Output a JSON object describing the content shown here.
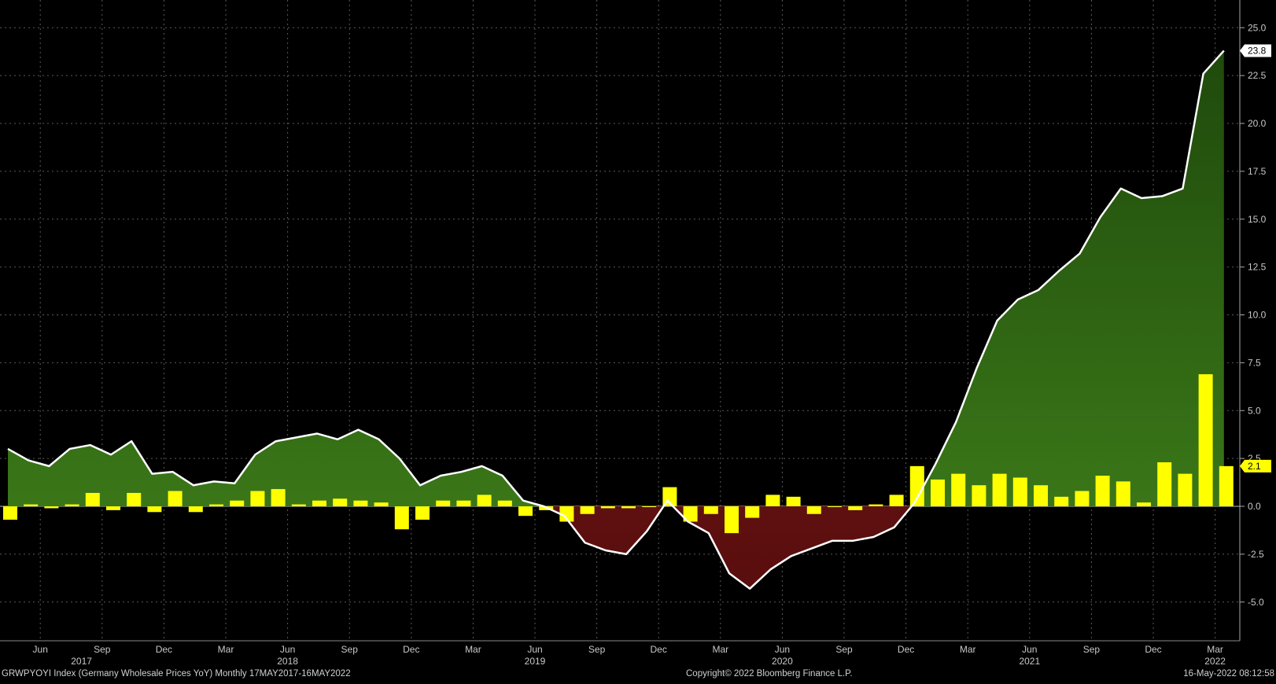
{
  "chart_data": {
    "type": "area",
    "ylim": [
      -7,
      26
    ],
    "grid": true,
    "y_ticks": [
      "25.0",
      "22.5",
      "20.0",
      "17.5",
      "15.0",
      "12.5",
      "10.0",
      "7.5",
      "5.0",
      "2.5",
      "0.0",
      "-2.5",
      "-5.0"
    ],
    "y_tick_values": [
      25,
      22.5,
      20,
      17.5,
      15,
      12.5,
      10,
      7.5,
      5,
      2.5,
      0,
      -2.5,
      -5
    ],
    "x_month_labels": [
      {
        "label": "Jun",
        "i": 1
      },
      {
        "label": "Sep",
        "i": 4
      },
      {
        "label": "Dec",
        "i": 7
      },
      {
        "label": "Mar",
        "i": 10
      },
      {
        "label": "Jun",
        "i": 13
      },
      {
        "label": "Sep",
        "i": 16
      },
      {
        "label": "Dec",
        "i": 19
      },
      {
        "label": "Mar",
        "i": 22
      },
      {
        "label": "Jun",
        "i": 25
      },
      {
        "label": "Sep",
        "i": 28
      },
      {
        "label": "Dec",
        "i": 31
      },
      {
        "label": "Mar",
        "i": 34
      },
      {
        "label": "Jun",
        "i": 37
      },
      {
        "label": "Sep",
        "i": 40
      },
      {
        "label": "Dec",
        "i": 43
      },
      {
        "label": "Mar",
        "i": 46
      },
      {
        "label": "Jun",
        "i": 49
      },
      {
        "label": "Sep",
        "i": 52
      },
      {
        "label": "Dec",
        "i": 55
      },
      {
        "label": "Mar",
        "i": 58
      }
    ],
    "x_year_labels": [
      {
        "label": "2017",
        "i": 3
      },
      {
        "label": "2018",
        "i": 13
      },
      {
        "label": "2019",
        "i": 25
      },
      {
        "label": "2020",
        "i": 37
      },
      {
        "label": "2021",
        "i": 49
      },
      {
        "label": "2022",
        "i": 58
      }
    ],
    "series": [
      {
        "type": "area-line",
        "x": [
          "May 2017",
          "Jun 2017",
          "Jul 2017",
          "Aug 2017",
          "Sep 2017",
          "Oct 2017",
          "Nov 2017",
          "Dec 2017",
          "Jan 2018",
          "Feb 2018",
          "Mar 2018",
          "Apr 2018",
          "May 2018",
          "Jun 2018",
          "Jul 2018",
          "Aug 2018",
          "Sep 2018",
          "Oct 2018",
          "Nov 2018",
          "Dec 2018",
          "Jan 2019",
          "Feb 2019",
          "Mar 2019",
          "Apr 2019",
          "May 2019",
          "Jun 2019",
          "Jul 2019",
          "Aug 2019",
          "Sep 2019",
          "Oct 2019",
          "Nov 2019",
          "Dec 2019",
          "Jan 2020",
          "Feb 2020",
          "Mar 2020",
          "Apr 2020",
          "May 2020",
          "Jun 2020",
          "Jul 2020",
          "Aug 2020",
          "Sep 2020",
          "Oct 2020",
          "Nov 2020",
          "Dec 2020",
          "Jan 2021",
          "Feb 2021",
          "Mar 2021",
          "Apr 2021",
          "May 2021",
          "Jun 2021",
          "Jul 2021",
          "Aug 2021",
          "Sep 2021",
          "Oct 2021",
          "Nov 2021",
          "Dec 2021",
          "Jan 2022",
          "Feb 2022",
          "Mar 2022",
          "Apr 2022"
        ],
        "values": [
          3.0,
          2.4,
          2.1,
          3.0,
          3.2,
          2.7,
          3.4,
          1.7,
          1.8,
          1.1,
          1.3,
          1.2,
          2.7,
          3.4,
          3.6,
          3.8,
          3.5,
          4.0,
          3.5,
          2.5,
          1.1,
          1.6,
          1.8,
          2.1,
          1.6,
          0.3,
          0.0,
          -0.5,
          -1.9,
          -2.3,
          -2.5,
          -1.3,
          0.3,
          -0.8,
          -1.4,
          -3.5,
          -4.3,
          -3.3,
          -2.6,
          -2.2,
          -1.8,
          -1.8,
          -1.6,
          -1.1,
          0.2,
          2.2,
          4.4,
          7.2,
          9.7,
          10.8,
          11.3,
          12.3,
          13.2,
          15.1,
          16.6,
          16.1,
          16.2,
          16.6,
          22.6,
          23.8
        ],
        "last_value_label": "23.8"
      },
      {
        "type": "bar",
        "values": [
          -0.7,
          0.1,
          -0.1,
          0.1,
          0.7,
          -0.2,
          0.7,
          -0.3,
          0.8,
          -0.3,
          0.1,
          0.3,
          0.8,
          0.9,
          0.1,
          0.3,
          0.4,
          0.3,
          0.2,
          -1.2,
          -0.7,
          0.3,
          0.3,
          0.6,
          0.3,
          -0.5,
          -0.2,
          -0.8,
          -0.4,
          -0.1,
          -0.1,
          0.0,
          1.0,
          -0.8,
          -0.4,
          -1.4,
          -0.6,
          0.6,
          0.5,
          -0.4,
          0.0,
          -0.2,
          0.1,
          0.6,
          2.1,
          1.4,
          1.7,
          1.1,
          1.7,
          1.5,
          1.1,
          0.5,
          0.8,
          1.6,
          1.3,
          0.2,
          2.3,
          1.7,
          6.9,
          2.1
        ],
        "last_value_label": "2.1"
      }
    ],
    "footer": {
      "left": "GRWPYOYI Index (Germany Wholesale Prices YoY)  Monthly 17MAY2017-16MAY2022",
      "center": "Copyright© 2022 Bloomberg Finance L.P.",
      "right": "16-May-2022 08:12:58"
    },
    "colors": {
      "background": "#000000",
      "grid": "#5a5a5a",
      "positive_area": "#3c7a18",
      "positive_area_top": "#24510e",
      "negative_area": "#7a1515",
      "line": "#ffffff",
      "bar": "#ffff00",
      "axis_text": "#c8c8c8"
    }
  }
}
